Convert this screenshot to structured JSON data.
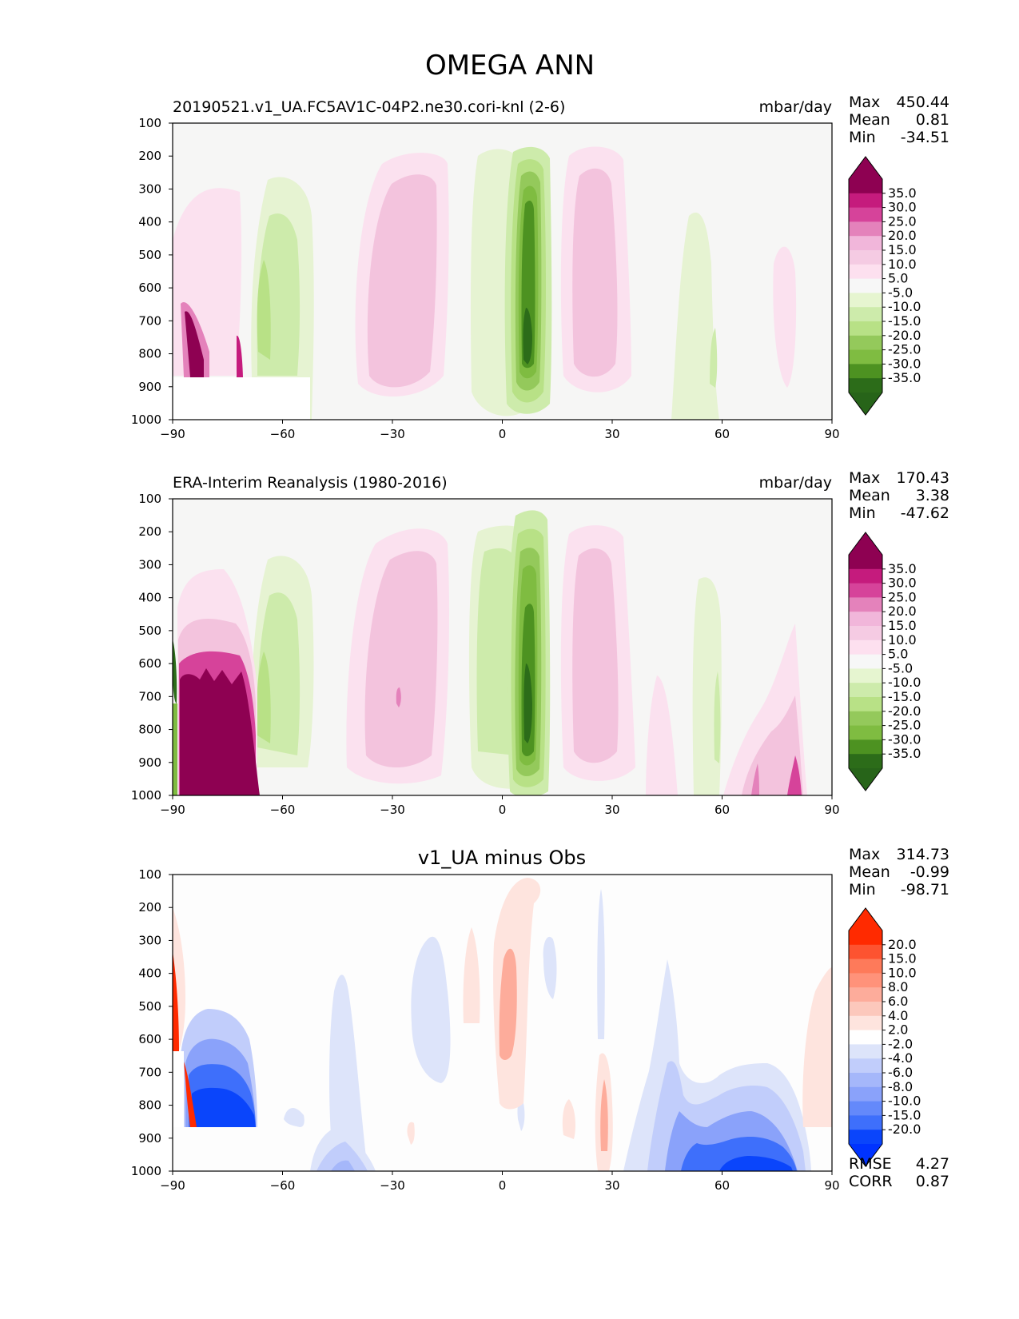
{
  "figure_title": "OMEGA ANN",
  "colors": {
    "frame": "#000000",
    "panel_bg": "#f6f6f5",
    "diff_bg": "#fdfdfd",
    "missing": "#ffffff"
  },
  "chart_data": [
    {
      "type": "contour",
      "panel": "test",
      "title_left": "20190521.v1_UA.FC5AV1C-04P2.ne30.cori-knl (2-6)",
      "title_right": "mbar/day",
      "stats": {
        "Max": "450.44",
        "Mean": "0.81",
        "Min": "-34.51"
      },
      "xlabel": "",
      "ylabel": "",
      "xlim": [
        -90,
        90
      ],
      "ylim": [
        1000,
        100
      ],
      "xticks": [
        "−90",
        "−60",
        "−30",
        "0",
        "30",
        "60",
        "90"
      ],
      "yticks": [
        "100",
        "200",
        "300",
        "400",
        "500",
        "600",
        "700",
        "800",
        "900",
        "1000"
      ],
      "colorbar": {
        "labels": [
          "35.0",
          "30.0",
          "25.0",
          "20.0",
          "15.0",
          "10.0",
          "5.0",
          "-5.0",
          "-10.0",
          "-15.0",
          "-20.0",
          "-25.0",
          "-30.0",
          "-35.0"
        ],
        "colors": [
          "#8e0152",
          "#c51b7d",
          "#d6439a",
          "#e482bb",
          "#f1b6da",
          "#f5cbe3",
          "#fde0ef",
          "#f7f7f7",
          "#e6f5d0",
          "#cdebab",
          "#b8e186",
          "#94c95b",
          "#7fbc41",
          "#4d9221",
          "#2c6c19"
        ],
        "top_color": "#8e0152",
        "bottom_color": "#276419"
      }
    },
    {
      "type": "contour",
      "panel": "reference",
      "title_left": "ERA-Interim Reanalysis (1980-2016)",
      "title_right": "mbar/day",
      "stats": {
        "Max": "170.43",
        "Mean": "3.38",
        "Min": "-47.62"
      },
      "xlabel": "",
      "ylabel": "",
      "xlim": [
        -90,
        90
      ],
      "ylim": [
        1000,
        100
      ],
      "xticks": [
        "−90",
        "−60",
        "−30",
        "0",
        "30",
        "60",
        "90"
      ],
      "yticks": [
        "100",
        "200",
        "300",
        "400",
        "500",
        "600",
        "700",
        "800",
        "900",
        "1000"
      ],
      "colorbar": {
        "labels": [
          "35.0",
          "30.0",
          "25.0",
          "20.0",
          "15.0",
          "10.0",
          "5.0",
          "-5.0",
          "-10.0",
          "-15.0",
          "-20.0",
          "-25.0",
          "-30.0",
          "-35.0"
        ],
        "colors": [
          "#8e0152",
          "#c51b7d",
          "#d6439a",
          "#e482bb",
          "#f1b6da",
          "#f5cbe3",
          "#fde0ef",
          "#f7f7f7",
          "#e6f5d0",
          "#cdebab",
          "#b8e186",
          "#94c95b",
          "#7fbc41",
          "#4d9221",
          "#2c6c19"
        ],
        "top_color": "#8e0152",
        "bottom_color": "#276419"
      }
    },
    {
      "type": "contour",
      "panel": "difference",
      "title_center": "v1_UA minus Obs",
      "stats": {
        "Max": "314.73",
        "Mean": "-0.99",
        "Min": "-98.71"
      },
      "metrics": {
        "RMSE": "4.27",
        "CORR": "0.87"
      },
      "xlabel": "",
      "ylabel": "",
      "xlim": [
        -90,
        90
      ],
      "ylim": [
        1000,
        100
      ],
      "xticks": [
        "−90",
        "−60",
        "−30",
        "0",
        "30",
        "60",
        "90"
      ],
      "yticks": [
        "100",
        "200",
        "300",
        "400",
        "500",
        "600",
        "700",
        "800",
        "900",
        "1000"
      ],
      "colorbar": {
        "labels": [
          "20.0",
          "15.0",
          "10.0",
          "8.0",
          "6.0",
          "4.0",
          "2.0",
          "-2.0",
          "-4.0",
          "-6.0",
          "-8.0",
          "-10.0",
          "-15.0",
          "-20.0"
        ],
        "colors": [
          "#ff2a00",
          "#fd5330",
          "#fe7a5a",
          "#ff927a",
          "#fdac9b",
          "#fcc8bc",
          "#fee4de",
          "#ffffff",
          "#dde4fa",
          "#c1cdfb",
          "#a5b7fa",
          "#8aa2fa",
          "#6489fa",
          "#3e6ffb",
          "#0a45fb"
        ],
        "top_color": "#ff2a00",
        "bottom_color": "#0033ff"
      }
    }
  ]
}
